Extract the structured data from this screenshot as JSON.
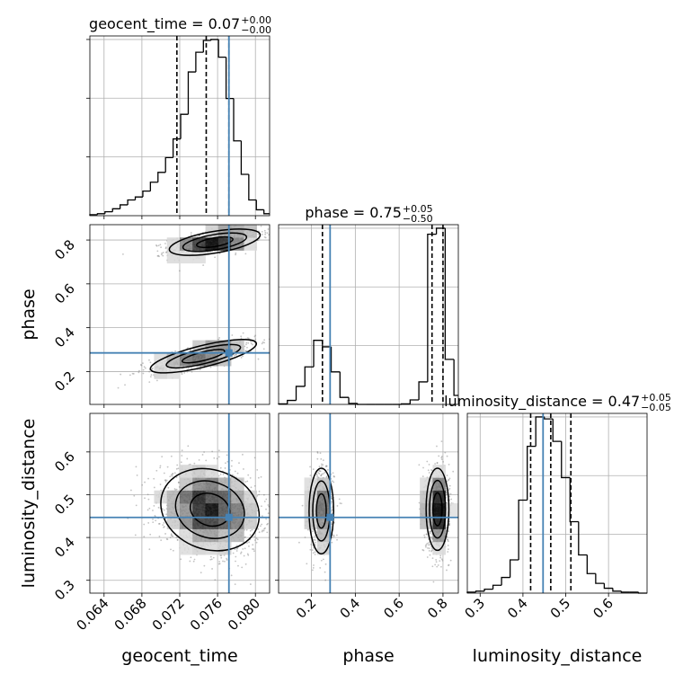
{
  "chart_data": {
    "type": "corner",
    "parameters": [
      {
        "name": "geocent_time",
        "axis_label": "geocent_time",
        "range": [
          0.0625,
          0.0815
        ],
        "ticks": [
          0.064,
          0.068,
          0.072,
          0.076,
          0.08
        ],
        "tick_labels": [
          "0.064",
          "0.068",
          "0.072",
          "0.076",
          "0.080"
        ],
        "title": {
          "prefix": "geocent_time = 0.07",
          "sup": "+0.00",
          "sub": "−0.00"
        },
        "quantile_lines": [
          0.0717,
          0.0748,
          0.0772
        ],
        "truth": 0.0772,
        "histogram": {
          "edges": [
            0.0625,
            0.0633,
            0.0641,
            0.0649,
            0.0657,
            0.0665,
            0.0673,
            0.0681,
            0.0689,
            0.0697,
            0.0705,
            0.0713,
            0.0721,
            0.0729,
            0.0737,
            0.0745,
            0.0753,
            0.0761,
            0.0769,
            0.0777,
            0.0785,
            0.0793,
            0.0801,
            0.0809,
            0.0815
          ],
          "counts": [
            1,
            2,
            4,
            7,
            11,
            16,
            19,
            25,
            34,
            44,
            59,
            78,
            103,
            146,
            166,
            178,
            179,
            161,
            119,
            76,
            42,
            16,
            6,
            2
          ]
        }
      },
      {
        "name": "phase",
        "axis_label": "phase",
        "range": [
          0.05,
          0.87
        ],
        "ticks": [
          0.2,
          0.4,
          0.6,
          0.8
        ],
        "tick_labels": [
          "0.2",
          "0.4",
          "0.6",
          "0.8"
        ],
        "title": {
          "prefix": "phase = 0.75",
          "sup": "+0.05",
          "sub": "−0.50"
        },
        "quantile_lines": [
          0.25,
          0.75,
          0.8
        ],
        "truth": 0.285,
        "histogram": {
          "edges": [
            0.05,
            0.09,
            0.13,
            0.17,
            0.21,
            0.25,
            0.29,
            0.33,
            0.37,
            0.41,
            0.45,
            0.49,
            0.53,
            0.57,
            0.61,
            0.65,
            0.69,
            0.73,
            0.77,
            0.81,
            0.85,
            0.87
          ],
          "counts": [
            1,
            8,
            36,
            75,
            128,
            115,
            65,
            14,
            2,
            0,
            0,
            0,
            0,
            0,
            1,
            9,
            45,
            340,
            352,
            90,
            18
          ]
        }
      },
      {
        "name": "luminosity_distance",
        "axis_label": "luminosity_distance",
        "range": [
          0.27,
          0.69
        ],
        "ticks": [
          0.3,
          0.4,
          0.5,
          0.6
        ],
        "tick_labels": [
          "0.3",
          "0.4",
          "0.5",
          "0.6"
        ],
        "title": {
          "prefix": "luminosity_distance = 0.47",
          "sup": "+0.05",
          "sub": "−0.05"
        },
        "quantile_lines": [
          0.418,
          0.465,
          0.512
        ],
        "truth": 0.447,
        "histogram": {
          "edges": [
            0.27,
            0.29,
            0.31,
            0.33,
            0.35,
            0.37,
            0.39,
            0.41,
            0.43,
            0.45,
            0.47,
            0.49,
            0.51,
            0.53,
            0.55,
            0.57,
            0.59,
            0.61,
            0.63,
            0.65,
            0.67,
            0.69
          ],
          "counts": [
            1,
            2,
            4,
            8,
            16,
            34,
            95,
            150,
            180,
            178,
            155,
            118,
            73,
            39,
            20,
            10,
            5,
            2,
            1,
            1,
            0
          ]
        }
      }
    ],
    "pair_plots": [
      {
        "x": "geocent_time",
        "y": "phase",
        "modes": [
          {
            "cx": 0.0757,
            "cy": 0.79,
            "sx": 0.0024,
            "sy": 0.03,
            "rho": 0.55,
            "count": 900
          },
          {
            "cx": 0.0745,
            "cy": 0.27,
            "sx": 0.0028,
            "sy": 0.038,
            "rho": 0.75,
            "count": 700
          }
        ],
        "truth": [
          0.0772,
          0.285
        ]
      },
      {
        "x": "geocent_time",
        "y": "luminosity_distance",
        "modes": [
          {
            "cx": 0.0752,
            "cy": 0.465,
            "sx": 0.0026,
            "sy": 0.048,
            "rho": -0.15,
            "count": 1800
          }
        ],
        "truth": [
          0.0772,
          0.447
        ]
      },
      {
        "x": "phase",
        "y": "luminosity_distance",
        "modes": [
          {
            "cx": 0.245,
            "cy": 0.462,
            "sx": 0.028,
            "sy": 0.05,
            "rho": 0.0,
            "count": 700
          },
          {
            "cx": 0.775,
            "cy": 0.466,
            "sx": 0.026,
            "sy": 0.048,
            "rho": 0.0,
            "count": 1100
          }
        ],
        "truth": [
          0.285,
          0.447
        ]
      }
    ],
    "truth_color": "#4682b4",
    "line_color": "#000000",
    "grid": true
  }
}
